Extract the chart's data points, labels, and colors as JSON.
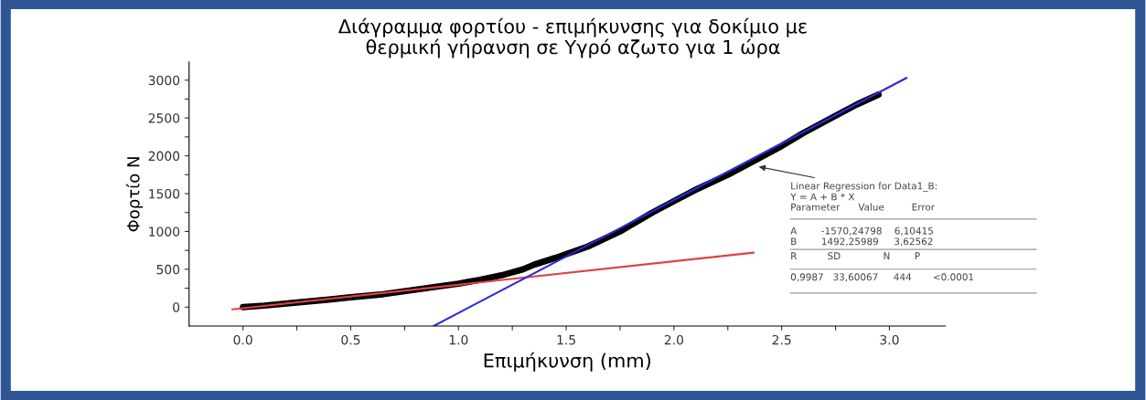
{
  "chart_data": {
    "type": "line",
    "title": "Διάγραμμα φορτίου - επιμήκυνσης για δοκίμιο με\nθερμική γήρανση σε Υγρό αζωτο για 1 ώρα",
    "xlabel": "Επιμήκυνση (mm)",
    "ylabel": "Φορτίο N",
    "xlim": [
      -0.25,
      3.26
    ],
    "ylim": [
      -250,
      3240
    ],
    "xticks": [
      {
        "value": 0,
        "label": "0.0"
      },
      {
        "value": 0.25,
        "label": null
      },
      {
        "value": 0.5,
        "label": "0.5"
      },
      {
        "value": 0.75,
        "label": null
      },
      {
        "value": 1,
        "label": "1.0"
      },
      {
        "value": 1.25,
        "label": null
      },
      {
        "value": 1.5,
        "label": "1.5"
      },
      {
        "value": 1.75,
        "label": null
      },
      {
        "value": 2,
        "label": "2.0"
      },
      {
        "value": 2.25,
        "label": null
      },
      {
        "value": 2.5,
        "label": "2.5"
      },
      {
        "value": 2.75,
        "label": null
      },
      {
        "value": 3,
        "label": "3.0"
      }
    ],
    "yticks": [
      0,
      {
        "value": 250,
        "label": null
      },
      500,
      {
        "value": 750,
        "label": null
      },
      1000,
      {
        "value": 1250,
        "label": null
      },
      1500,
      {
        "value": 1750,
        "label": null
      },
      2000,
      {
        "value": 2250,
        "label": null
      },
      2500,
      {
        "value": 2750,
        "label": null
      },
      3000
    ],
    "grid": false,
    "marker": "none",
    "line_style": "solid",
    "series": [
      {
        "color": "#000000",
        "x": [
          0,
          0.1,
          0.25,
          0.4,
          0.5,
          0.65,
          0.75,
          0.9,
          1.0,
          1.1,
          1.2,
          1.3,
          1.35,
          1.45,
          1.5,
          1.6,
          1.75,
          1.9,
          2.0,
          2.1,
          2.25,
          2.35,
          2.5,
          2.6,
          2.75,
          2.85,
          2.95
        ],
        "values": [
          0,
          20,
          60,
          100,
          130,
          170,
          210,
          270,
          310,
          360,
          420,
          500,
          560,
          650,
          700,
          800,
          1000,
          1250,
          1400,
          1550,
          1750,
          1900,
          2130,
          2300,
          2530,
          2680,
          2810
        ]
      },
      {
        "color": "#2a2ad8",
        "x": [
          0.885,
          3.08
        ],
        "values": [
          -250,
          3030
        ]
      },
      {
        "color": "#e04040",
        "x": [
          -0.05,
          2.37
        ],
        "values": [
          -30,
          720
        ]
      }
    ],
    "annotations": [
      "Linear Regression for Data1_B:\nY = A + B * X",
      "Parameter      Value         Error",
      "A        -1570,24798    6,10415\nB        1492,25989     3,62562",
      "R          SD              N        P",
      "0,9987   33,60067     444       <0.0001"
    ]
  }
}
